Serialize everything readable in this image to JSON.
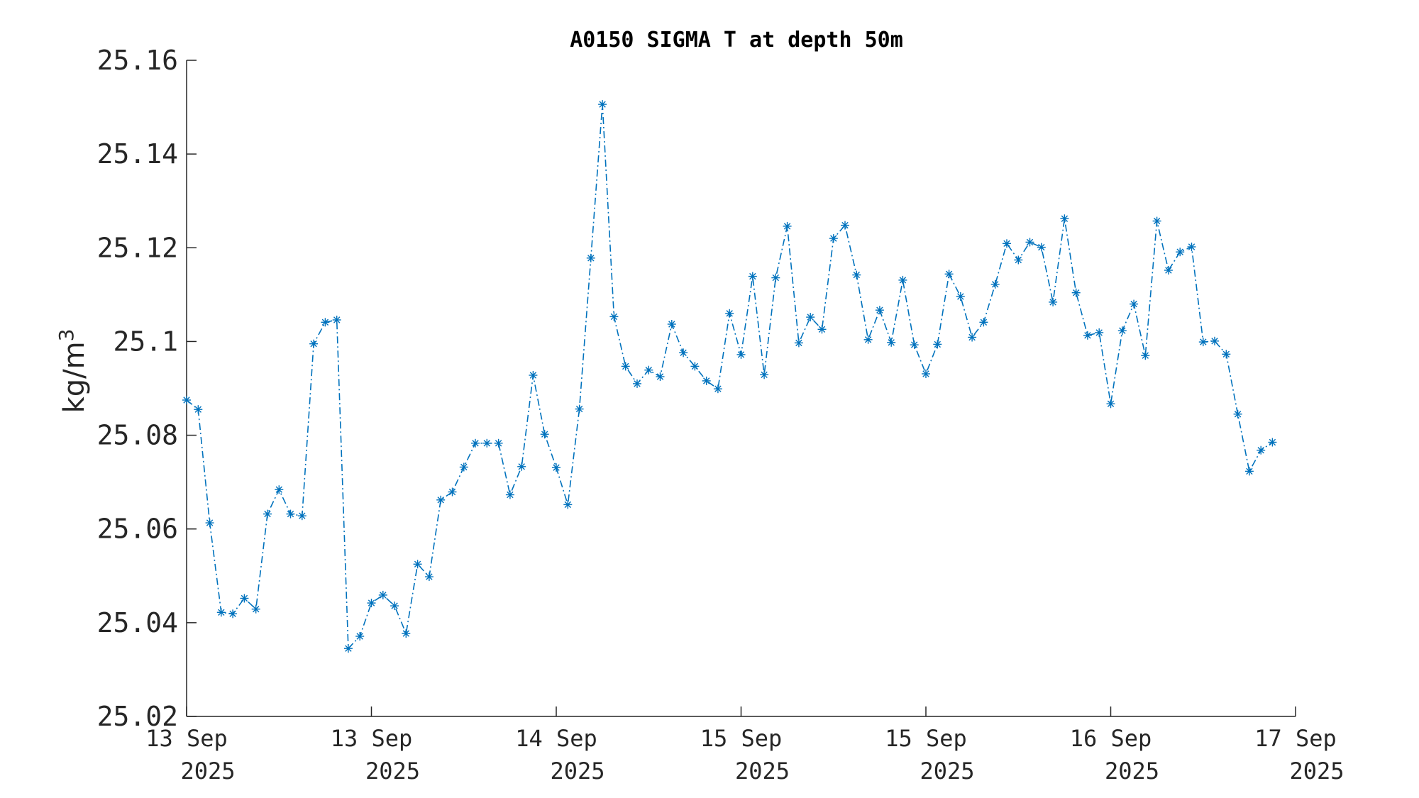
{
  "chart_data": {
    "type": "line",
    "title": "A0150 SIGMA T at depth 50m",
    "ylabel_base": "kg/m",
    "ylabel_sup": "3",
    "ylim": [
      25.02,
      25.16
    ],
    "yticks": [
      25.02,
      25.04,
      25.06,
      25.08,
      25.1,
      25.12,
      25.14,
      25.16
    ],
    "ytick_labels": [
      "25.02",
      "25.04",
      "25.06",
      "25.08",
      "25.1",
      "25.12",
      "25.14",
      "25.16"
    ],
    "xlim": [
      0,
      96
    ],
    "xticks": [
      0,
      16,
      32,
      48,
      64,
      80,
      96
    ],
    "xtick_labels": [
      [
        "13 Sep",
        "2025"
      ],
      [
        "13 Sep",
        "2025"
      ],
      [
        "14 Sep",
        "2025"
      ],
      [
        "15 Sep",
        "2025"
      ],
      [
        "15 Sep",
        "2025"
      ],
      [
        "16 Sep",
        "2025"
      ],
      [
        "17 Sep",
        "2025"
      ]
    ],
    "grid": false,
    "series": [
      {
        "color": "#0072bd",
        "line_style": "dash-dot",
        "marker": "asterisk",
        "x_interval_hours": 1,
        "values": [
          25.0875,
          25.0855,
          25.0613,
          25.0422,
          25.0419,
          25.0452,
          25.0429,
          25.0632,
          25.0684,
          25.0632,
          25.0628,
          25.0995,
          25.1041,
          25.1046,
          25.0345,
          25.0371,
          25.0442,
          25.0459,
          25.0436,
          25.0377,
          25.0525,
          25.0498,
          25.0662,
          25.0679,
          25.0732,
          25.0783,
          25.0783,
          25.0783,
          25.0673,
          25.0733,
          25.0928,
          25.0802,
          25.0731,
          25.0652,
          25.0856,
          25.1178,
          25.1506,
          25.1053,
          25.0947,
          25.091,
          25.0939,
          25.0925,
          25.1037,
          25.0976,
          25.0947,
          25.0916,
          25.0899,
          25.106,
          25.0972,
          25.1139,
          25.0929,
          25.1136,
          25.1246,
          25.0997,
          25.1052,
          25.1026,
          25.122,
          25.1248,
          25.1142,
          25.1004,
          25.1067,
          25.0998,
          25.1131,
          25.0993,
          25.0931,
          25.0994,
          25.1144,
          25.1096,
          25.1009,
          25.1041,
          25.1122,
          25.1209,
          25.1174,
          25.1212,
          25.1201,
          25.1084,
          25.1262,
          25.1104,
          25.1013,
          25.1019,
          25.0867,
          25.1023,
          25.108,
          25.097,
          25.1257,
          25.1152,
          25.1191,
          25.1202,
          25.0999,
          25.1001,
          25.0973,
          25.0845,
          25.0723,
          25.0768,
          25.0785
        ]
      }
    ]
  }
}
